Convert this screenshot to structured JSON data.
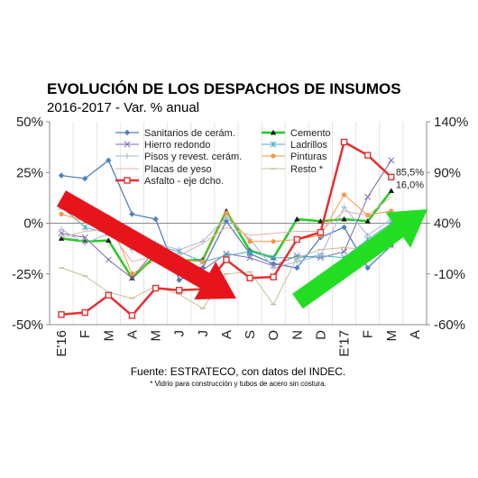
{
  "chart_data": {
    "type": "line",
    "title": "EVOLUCIÓN DE LOS DESPACHOS DE INSUMOS",
    "subtitle": "2016-2017 - Var. % anual",
    "source": "Fuente: ESTRATECO, con datos del INDEC.",
    "footnote": "* Vidrio para construcción y tubos de acero sin costura.",
    "categories": [
      "E'16",
      "F",
      "M",
      "A",
      "M",
      "J",
      "J",
      "A",
      "S",
      "O",
      "N",
      "D",
      "E'17",
      "F",
      "M",
      "A"
    ],
    "y_left": {
      "ticks": [
        "50%",
        "25%",
        "0%",
        "-25%",
        "-50%"
      ],
      "range": [
        -50,
        50
      ]
    },
    "y_right": {
      "ticks": [
        "140%",
        "90%",
        "40%",
        "-10%",
        "-60%"
      ],
      "range": [
        -60,
        140
      ]
    },
    "grid": "vertical",
    "legend": "top-center",
    "series": [
      {
        "name": "Sanitarios de cerám.",
        "color": "#4f81bd",
        "width": 1.3,
        "marker": "diamond",
        "axis": "left",
        "values": [
          23.5,
          22,
          31,
          4.5,
          2,
          -28,
          -22,
          1,
          -15,
          -20,
          -22,
          -7,
          -2,
          -22,
          -11,
          null
        ]
      },
      {
        "name": "Cemento",
        "color": "#22cc22",
        "width": 2.5,
        "marker": "triangle",
        "axis": "left",
        "values": [
          -7.5,
          -9,
          -8.5,
          -27,
          -16,
          -18.5,
          -18,
          6,
          -13.5,
          -17,
          2,
          1,
          2,
          1,
          16,
          null
        ]
      },
      {
        "name": "Hierro redondo",
        "color": "#7a6aa8",
        "width": 1.0,
        "marker": "x",
        "axis": "left",
        "values": [
          -5,
          -7,
          -18,
          -27,
          -13,
          -20,
          -23,
          -15,
          -17,
          -21,
          -16,
          -17,
          -14,
          13,
          31,
          null
        ]
      },
      {
        "name": "Ladrillos",
        "color": "#4bacc6",
        "width": 1.0,
        "marker": "asterisk",
        "axis": "left",
        "values": [
          8,
          -2,
          -5,
          -7,
          -11,
          -14,
          -19,
          -16,
          -14,
          -17,
          -17,
          -16,
          -17,
          -8,
          0,
          null
        ]
      },
      {
        "name": "Pisos y revest. cerám.",
        "color": "#a3b4d8",
        "width": 1.0,
        "marker": "plus",
        "axis": "left",
        "values": [
          -3,
          -10,
          -5,
          -13,
          -10,
          -13,
          -9,
          3,
          -8,
          -22,
          -19,
          -16,
          8,
          -6,
          2,
          null
        ]
      },
      {
        "name": "Pinturas",
        "color": "#f79646",
        "width": 1.0,
        "marker": "circle",
        "axis": "left",
        "values": [
          4.5,
          1,
          3,
          -25,
          -18,
          -18,
          -19,
          5,
          -9,
          -9,
          -8,
          -6,
          14,
          4,
          6,
          null
        ]
      },
      {
        "name": "Placas de yeso",
        "color": "#e6b0a8",
        "width": 1.0,
        "marker": "none",
        "axis": "left",
        "values": [
          -7,
          -4,
          -3,
          -19,
          -16,
          -16,
          -10,
          -2,
          -6,
          -5,
          -4,
          -4,
          6,
          4,
          13,
          null
        ]
      },
      {
        "name": "Resto *",
        "color": "#c4bd97",
        "width": 1.0,
        "marker": "dash",
        "axis": "left",
        "values": [
          -22,
          -26,
          -34,
          -37,
          -31,
          -35,
          -42,
          -25,
          -24,
          -40,
          -17,
          -13,
          -12,
          -13,
          -12,
          null
        ]
      },
      {
        "name": "Asfalto - eje dcho.",
        "color": "#e53030",
        "width": 2.5,
        "marker": "square",
        "axis": "right",
        "values": [
          -50,
          -48,
          -31,
          -51,
          -24,
          -26,
          -25,
          4,
          -14,
          -13,
          24,
          31,
          120,
          107,
          85.5,
          null
        ]
      }
    ],
    "annotations": [
      {
        "text": "85,5%",
        "series": "Asfalto - eje dcho.",
        "index": 14
      },
      {
        "text": "16,0%",
        "series": "Cemento",
        "index": 14
      }
    ],
    "arrows": [
      {
        "color": "#e8141b",
        "direction": "down",
        "from": "E'16",
        "to": "S"
      },
      {
        "color": "#22dd22",
        "direction": "up",
        "from": "N",
        "to": "A"
      }
    ]
  }
}
